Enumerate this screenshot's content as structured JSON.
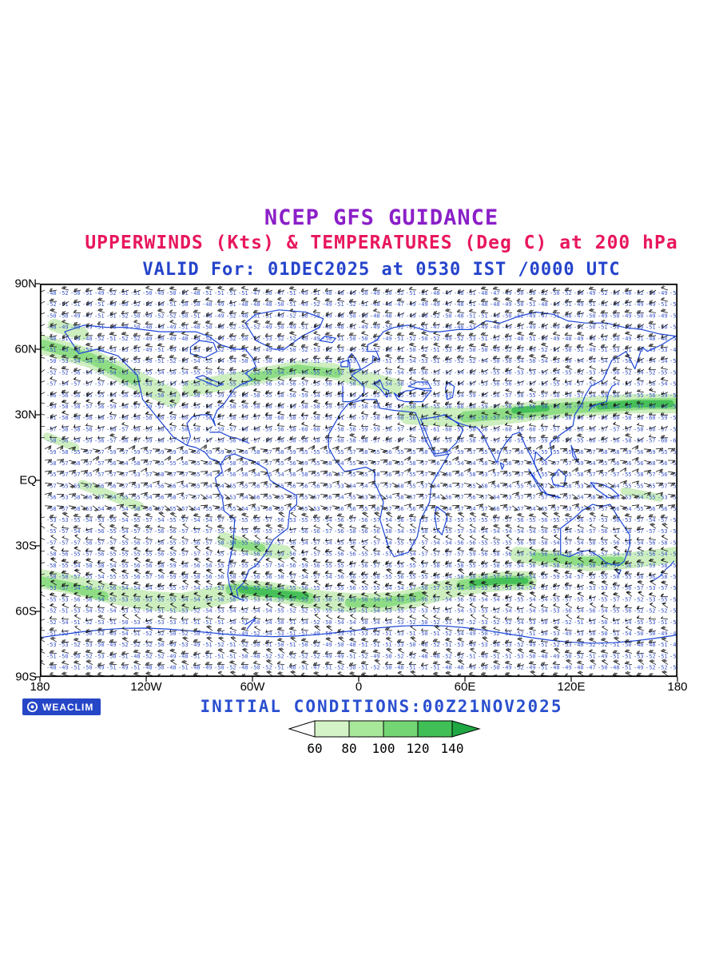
{
  "header": {
    "title": "NCEP GFS GUIDANCE",
    "subtitle": "UPPERWINDS (Kts) & TEMPERATURES (Deg C) at 200 hPa",
    "valid_line": "VALID For: 01DEC2025 at 0530 IST /0000 UTC"
  },
  "footer": {
    "initial_conditions": "INITIAL CONDITIONS:00Z21NOV2025",
    "logo_text": "WEACLIM"
  },
  "axes": {
    "lat_labels": [
      "90N",
      "60N",
      "30N",
      "EQ",
      "30S",
      "60S",
      "90S"
    ],
    "lon_labels": [
      "180",
      "120W",
      "60W",
      "0",
      "60E",
      "120E",
      "180"
    ]
  },
  "legend": {
    "values": [
      "60",
      "80",
      "100",
      "120",
      "140"
    ],
    "colors": [
      "#ffffff",
      "#d4f3c6",
      "#a8e89b",
      "#74d575",
      "#3fbf55",
      "#1ea743"
    ]
  },
  "colors": {
    "title": "#8b1fc8",
    "subtitle": "#e8175d",
    "valid": "#2544cb",
    "init": "#2a4fd0",
    "coast": "#1d46d6",
    "temp": "#3a55c8",
    "barb": "#1c1c1c",
    "green_light": "#cdeebf",
    "green_mid": "#8edd85",
    "green_dark": "#46c058",
    "logo_bg": "#2646c8"
  },
  "map_data": {
    "model": "NCEP GFS",
    "product": "Upper winds (Kts) & temperatures (Deg C)",
    "level_hPa": 200,
    "valid": "01DEC2025 at 0530 IST / 0000 UTC",
    "initial": "00Z 21NOV2025",
    "wind_speed_legend_kts": [
      60,
      80,
      100,
      120,
      140
    ],
    "lat_range": [
      "90S",
      "90N"
    ],
    "lon_range": [
      "180W",
      "180E"
    ],
    "temp_range_degC": [
      -66,
      -45
    ]
  }
}
